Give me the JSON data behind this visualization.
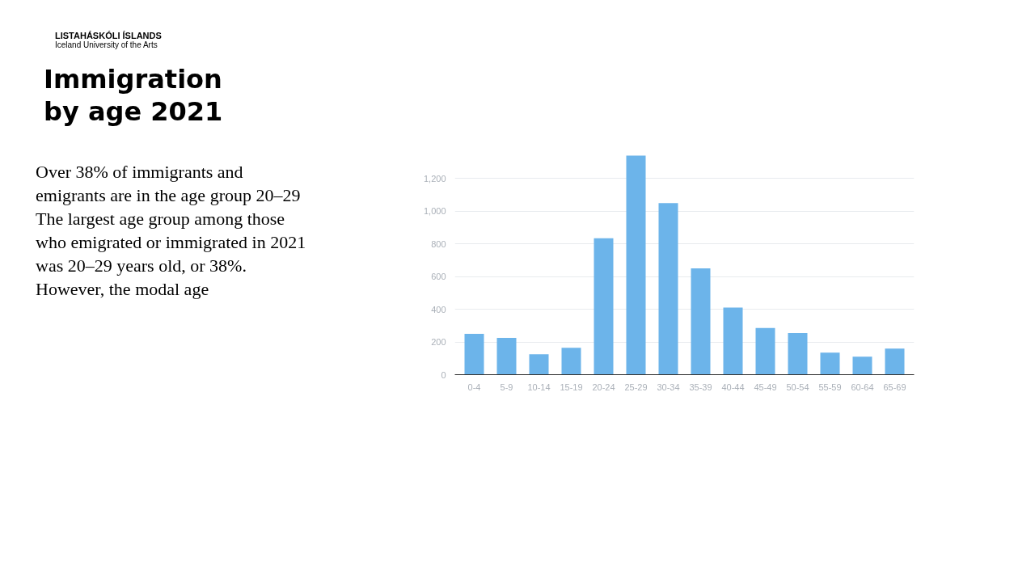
{
  "chart_data": {
    "type": "bar",
    "title": "Immigration by age 2021",
    "categories": [
      "0-4",
      "5-9",
      "10-14",
      "15-19",
      "20-24",
      "25-29",
      "30-34",
      "35-39",
      "40-44",
      "45-49",
      "50-54",
      "55-59",
      "60-64",
      "65-69"
    ],
    "values": [
      250,
      225,
      125,
      165,
      835,
      1340,
      1050,
      650,
      410,
      285,
      255,
      135,
      110,
      160
    ],
    "color": "#6cb4ea",
    "ylim": [
      0,
      1350
    ],
    "yticks": [
      0,
      {
        "value": 200,
        "label": "200"
      },
      {
        "value": 400,
        "label": "400"
      },
      {
        "value": 600,
        "label": "600"
      },
      {
        "value": 800,
        "label": "800"
      },
      {
        "value": 1000,
        "label": "1,000"
      },
      {
        "value": 1200,
        "label": "1,200"
      }
    ],
    "grid": "y",
    "annotations": [
      "LISTAHÁSKÓLI ÍSLANDS",
      "Iceland University of the Arts",
      "Over 38% of immigrants and emigrants are in the age group 20–29",
      "The largest age group among those who emigrated or immigrated in 2021 was 20–29 years old, or 38%. However, the modal age"
    ]
  }
}
